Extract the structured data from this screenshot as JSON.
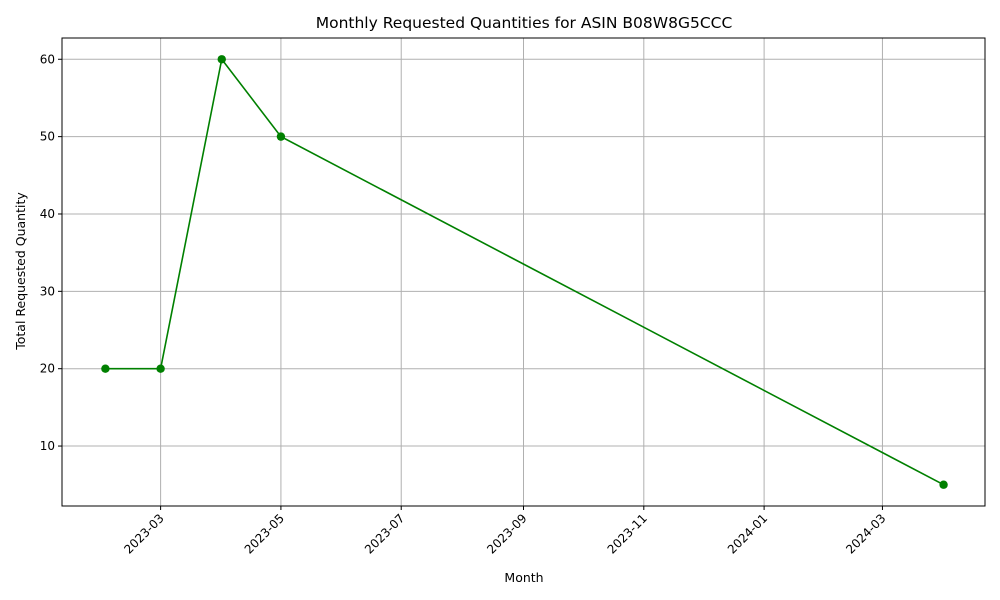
{
  "chart_data": {
    "type": "line",
    "title": "Monthly Requested Quantities for ASIN B08W8G5CCC",
    "xlabel": "Month",
    "ylabel": "Total Requested Quantity",
    "x": [
      "2023-02-01",
      "2023-03-01",
      "2023-04-01",
      "2023-05-01",
      "2024-04-01"
    ],
    "series": [
      {
        "values": [
          20,
          20,
          60,
          50,
          5
        ],
        "color": "#008000",
        "marker": "circle"
      }
    ],
    "xlim": [
      "2023-01-10",
      "2024-04-22"
    ],
    "ylim": [
      2.25,
      62.75
    ],
    "x_ticks": [
      "2023-03",
      "2023-05",
      "2023-07",
      "2023-09",
      "2023-11",
      "2024-01",
      "2024-03"
    ],
    "y_ticks": [
      10,
      20,
      30,
      40,
      50,
      60
    ],
    "x_tick_rotation": 45,
    "grid": true,
    "legend": "none"
  }
}
